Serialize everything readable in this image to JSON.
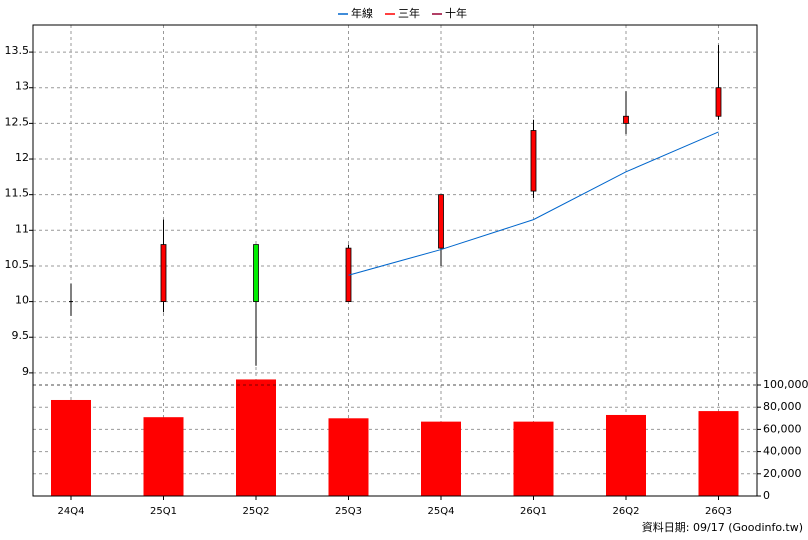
{
  "chart_data": [
    {
      "type": "candlestick",
      "candles": {
        "open": [
          10.0,
          10.0,
          10.8,
          10.0,
          10.75,
          11.55,
          12.5,
          12.6
        ],
        "high": [
          10.25,
          11.15,
          10.8,
          10.8,
          11.5,
          12.55,
          12.95,
          13.6
        ],
        "low": [
          9.8,
          9.85,
          9.1,
          10.0,
          10.5,
          11.45,
          12.35,
          12.55
        ],
        "close": [
          10.0,
          10.8,
          10.0,
          10.75,
          11.5,
          12.4,
          12.6,
          13.0
        ],
        "up_color": "#ff0000",
        "down_color": "#00ee00"
      },
      "series": [
        {
          "name": "年線",
          "color": "#0066cc",
          "values": [
            null,
            null,
            null,
            10.37,
            10.73,
            11.15,
            11.82,
            12.38
          ]
        },
        {
          "name": "三年",
          "color": "#ff0000",
          "values": [
            null,
            null,
            null,
            null,
            null,
            null,
            null,
            null
          ]
        },
        {
          "name": "十年",
          "color": "#990033",
          "values": [
            null,
            null,
            null,
            null,
            null,
            null,
            null,
            null
          ]
        }
      ],
      "ylim": [
        8.83,
        13.88
      ],
      "yticks": [
        9,
        9.5,
        10,
        10.5,
        11,
        11.5,
        12,
        12.5,
        13,
        13.5
      ],
      "grid": true,
      "legend": "top"
    },
    {
      "type": "bar",
      "categories": [
        "24Q4",
        "25Q1",
        "25Q2",
        "25Q3",
        "25Q4",
        "26Q1",
        "26Q2",
        "26Q3"
      ],
      "values": [
        86500,
        71000,
        105000,
        70000,
        67000,
        67000,
        73000,
        76500
      ],
      "color": "#ff0000",
      "ylim": [
        0,
        100000
      ],
      "yticks": [
        0,
        {
          "value": 20000,
          "label": "20,000"
        },
        {
          "value": 40000,
          "label": "40,000"
        },
        {
          "value": 60000,
          "label": "60,000"
        },
        {
          "value": 80000,
          "label": "80,000"
        },
        {
          "value": 100000,
          "label": "100,000"
        }
      ],
      "grid": true,
      "axis_side": "right",
      "footer": "資料日期: 09/17  (Goodinfo.tw)"
    }
  ]
}
